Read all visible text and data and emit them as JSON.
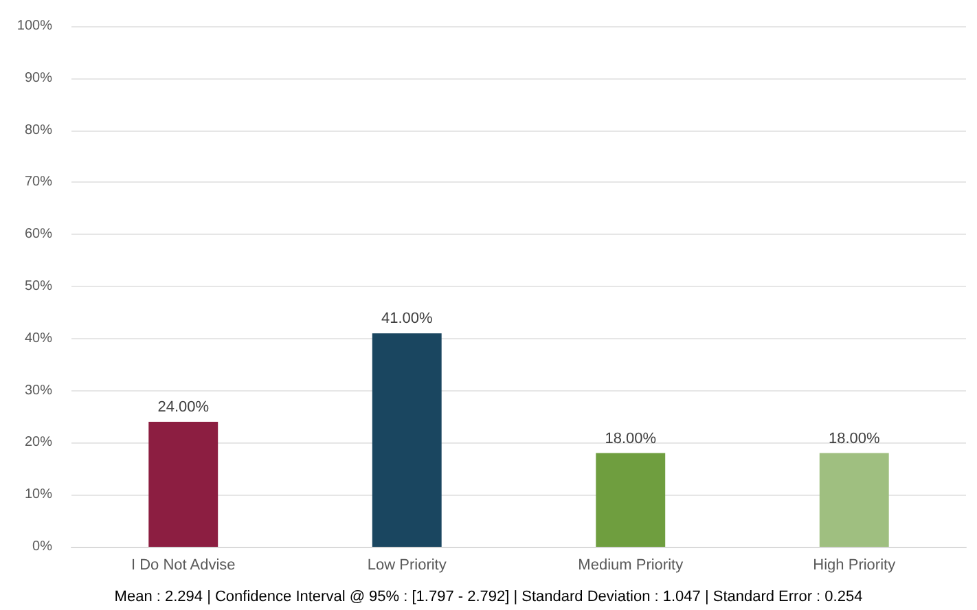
{
  "chart_data": {
    "type": "bar",
    "categories": [
      "I Do Not Advise",
      "Low Priority",
      "Medium Priority",
      "High Priority"
    ],
    "values": [
      24,
      41,
      18,
      18
    ],
    "colors": [
      "#8c1e41",
      "#1a4660",
      "#6f9e3f",
      "#9fbf80"
    ],
    "value_labels": [
      "24.00%",
      "41.00%",
      "18.00%",
      "18.00%"
    ],
    "ylim": [
      0,
      100
    ],
    "yticks": [
      {
        "value": 0,
        "label": "0%"
      },
      {
        "value": 10,
        "label": "10%"
      },
      {
        "value": 20,
        "label": "20%"
      },
      {
        "value": 30,
        "label": "30%"
      },
      {
        "value": 40,
        "label": "40%"
      },
      {
        "value": 50,
        "label": "50%"
      },
      {
        "value": 60,
        "label": "60%"
      },
      {
        "value": 70,
        "label": "70%"
      },
      {
        "value": 80,
        "label": "80%"
      },
      {
        "value": 90,
        "label": "90%"
      },
      {
        "value": 100,
        "label": "100%"
      }
    ],
    "grid": "y",
    "annotations": [
      "Mean : 2.294 | Confidence Interval @ 95% : [1.797 - 2.792] | Standard Deviation : 1.047 | Standard Error : 0.254"
    ]
  }
}
